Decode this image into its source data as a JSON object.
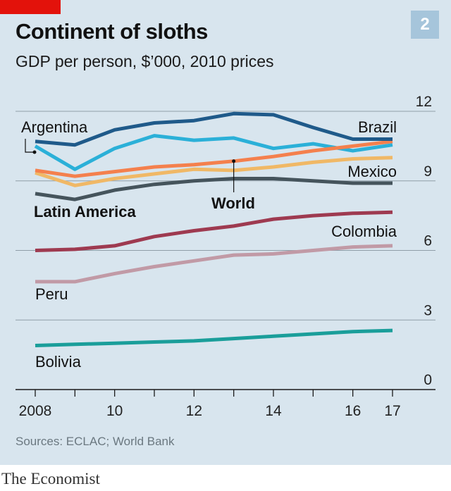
{
  "header": {
    "title": "Continent of sloths",
    "subtitle": "GDP per person, $’000, 2010 prices",
    "badge": "2"
  },
  "footer": {
    "source": "Sources: ECLAC; World Bank",
    "logo": "The Economist"
  },
  "colors": {
    "background": "#d8e5ee",
    "accent_red": "#e3120b",
    "badge": "#a6c5db"
  },
  "chart_data": {
    "type": "line",
    "title": "Continent of sloths",
    "subtitle": "GDP per person, $’000, 2010 prices",
    "xlabel": "",
    "ylabel": "",
    "x": [
      2008,
      2009,
      2010,
      2011,
      2012,
      2013,
      2014,
      2015,
      2016,
      2017
    ],
    "x_tick_values": [
      2008,
      2010,
      2012,
      2014,
      2016,
      2017
    ],
    "x_tick_labels": [
      "2008",
      "10",
      "12",
      "14",
      "16",
      "17"
    ],
    "y_tick_values": [
      0,
      3,
      6,
      9,
      12
    ],
    "y_tick_labels": [
      "0",
      "3",
      "6",
      "9",
      "12"
    ],
    "xlim": [
      2008,
      2017
    ],
    "ylim": [
      0,
      12
    ],
    "grid": "horizontal",
    "legend": "direct labels",
    "series": [
      {
        "name": "Brazil",
        "color": "#1f5a8a",
        "values": [
          10.7,
          10.55,
          11.2,
          11.5,
          11.6,
          11.9,
          11.85,
          11.3,
          10.8,
          10.8
        ]
      },
      {
        "name": "Argentina",
        "color": "#2bb0d8",
        "values": [
          10.5,
          9.5,
          10.4,
          10.95,
          10.75,
          10.85,
          10.4,
          10.6,
          10.3,
          10.55
        ]
      },
      {
        "name": "World",
        "color": "#f4804d",
        "values": [
          9.45,
          9.2,
          9.4,
          9.6,
          9.7,
          9.85,
          10.05,
          10.3,
          10.5,
          10.7
        ]
      },
      {
        "name": "Mexico",
        "color": "#f0b866",
        "values": [
          9.35,
          8.8,
          9.1,
          9.3,
          9.5,
          9.45,
          9.6,
          9.8,
          9.95,
          10.0
        ]
      },
      {
        "name": "Latin America",
        "color": "#45545c",
        "values": [
          8.45,
          8.2,
          8.6,
          8.85,
          9.0,
          9.1,
          9.1,
          9.0,
          8.9,
          8.9
        ]
      },
      {
        "name": "Colombia",
        "color": "#9e3a50",
        "values": [
          6.0,
          6.05,
          6.2,
          6.6,
          6.85,
          7.05,
          7.35,
          7.5,
          7.6,
          7.65
        ]
      },
      {
        "name": "Peru",
        "color": "#c19aa6",
        "values": [
          4.65,
          4.65,
          5.0,
          5.3,
          5.55,
          5.8,
          5.85,
          6.0,
          6.15,
          6.2
        ]
      },
      {
        "name": "Bolivia",
        "color": "#1a9e9a",
        "values": [
          1.9,
          1.95,
          2.0,
          2.05,
          2.1,
          2.2,
          2.3,
          2.4,
          2.5,
          2.55
        ]
      }
    ],
    "labels": {
      "brazil": "Brazil",
      "argentina": "Argentina",
      "world": "World",
      "mexico": "Mexico",
      "latin_america": "Latin America",
      "colombia": "Colombia",
      "peru": "Peru",
      "bolivia": "Bolivia"
    }
  }
}
